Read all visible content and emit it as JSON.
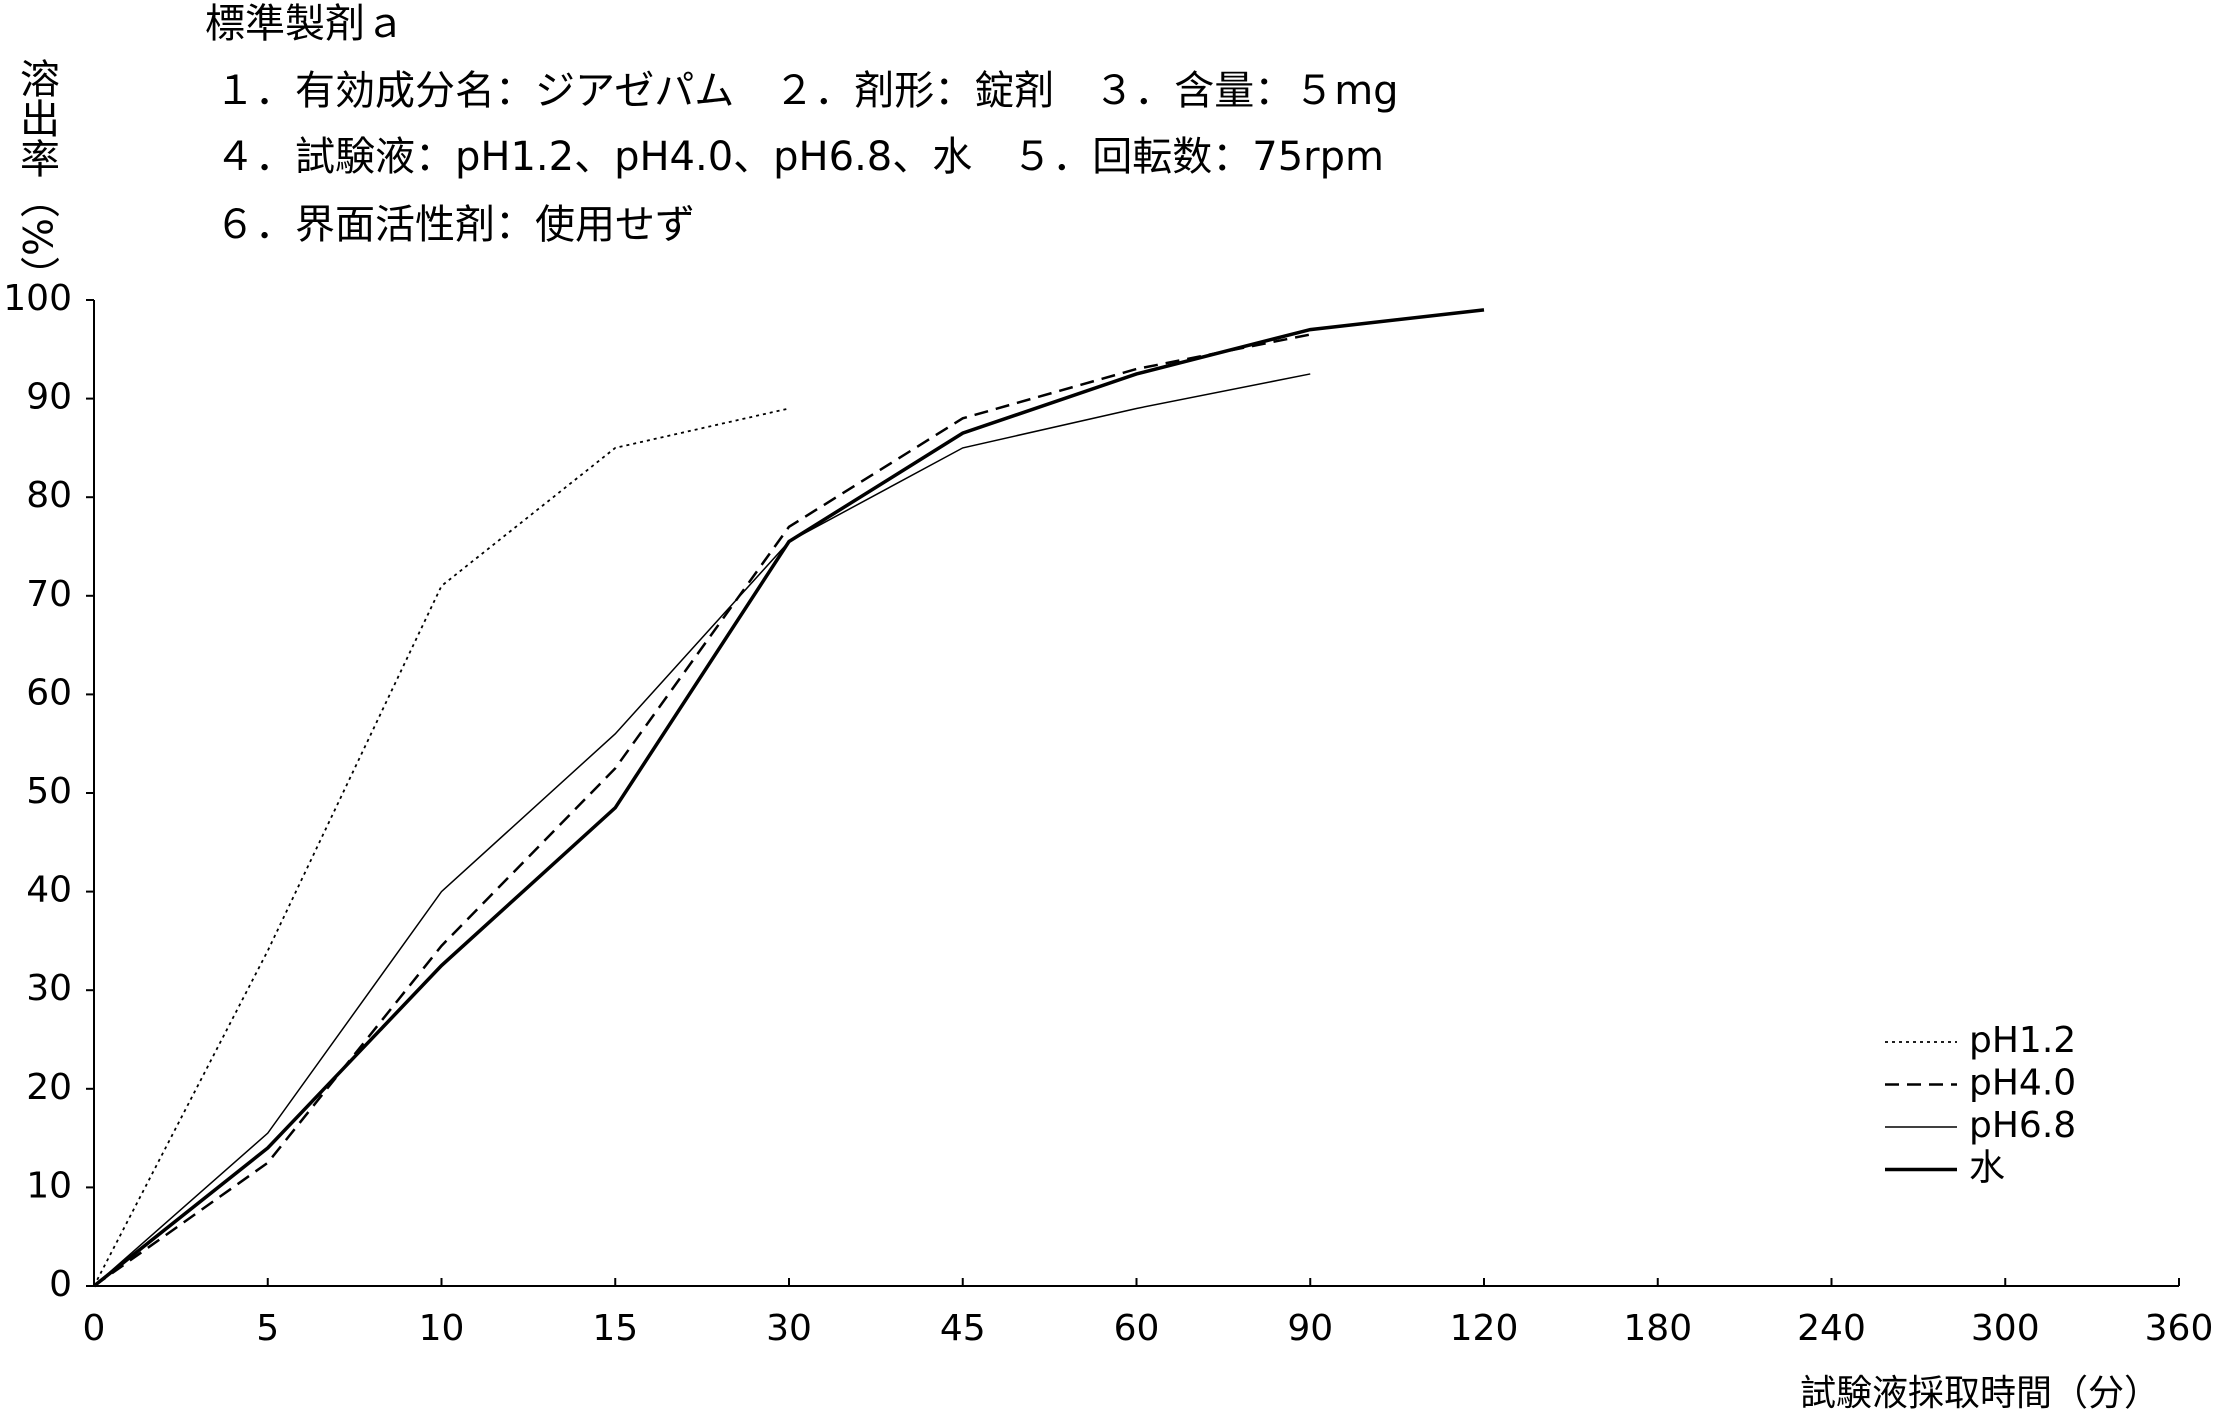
{
  "chart_data": {
    "type": "line",
    "title": "標準製剤ａ",
    "subtitle": [
      "１．有効成分名：ジアゼパム　２．剤形：錠剤　３．含量：５mg",
      "４．試験液：pH1.2、pH4.0、pH6.8、水　５．回転数：75rpm",
      "６．界面活性剤：使用せず"
    ],
    "ylabel": "溶出率（%）",
    "xlabel": "試験液採取時間（分）",
    "categories": [
      "0",
      "5",
      "10",
      "15",
      "30",
      "45",
      "60",
      "90",
      "120",
      "180",
      "240",
      "300",
      "360"
    ],
    "series": [
      {
        "name": "pH1.2",
        "color": "#000000",
        "style": "dotted",
        "values": [
          0,
          34,
          71,
          85,
          89,
          null,
          null,
          null,
          null,
          null,
          null,
          null,
          null
        ]
      },
      {
        "name": "pH4.0",
        "color": "#000000",
        "style": "dashed",
        "values": [
          0,
          12.5,
          34.5,
          52.5,
          77,
          88,
          93,
          96.5,
          null,
          null,
          null,
          null,
          null
        ]
      },
      {
        "name": "pH6.8",
        "color": "#000000",
        "style": "thin",
        "values": [
          0,
          15.5,
          40,
          56,
          75.5,
          85,
          89,
          92.5,
          null,
          null,
          null,
          null,
          null
        ]
      },
      {
        "name": "水",
        "color": "#000000",
        "style": "thick",
        "values": [
          0,
          14,
          32.5,
          48.5,
          75.5,
          86.5,
          92.5,
          97,
          99,
          null,
          null,
          null,
          null
        ]
      }
    ],
    "ylim": [
      0,
      100
    ],
    "yticks": [
      0,
      10,
      20,
      30,
      40,
      50,
      60,
      70,
      80,
      90,
      100
    ],
    "legend": "lower-right"
  }
}
